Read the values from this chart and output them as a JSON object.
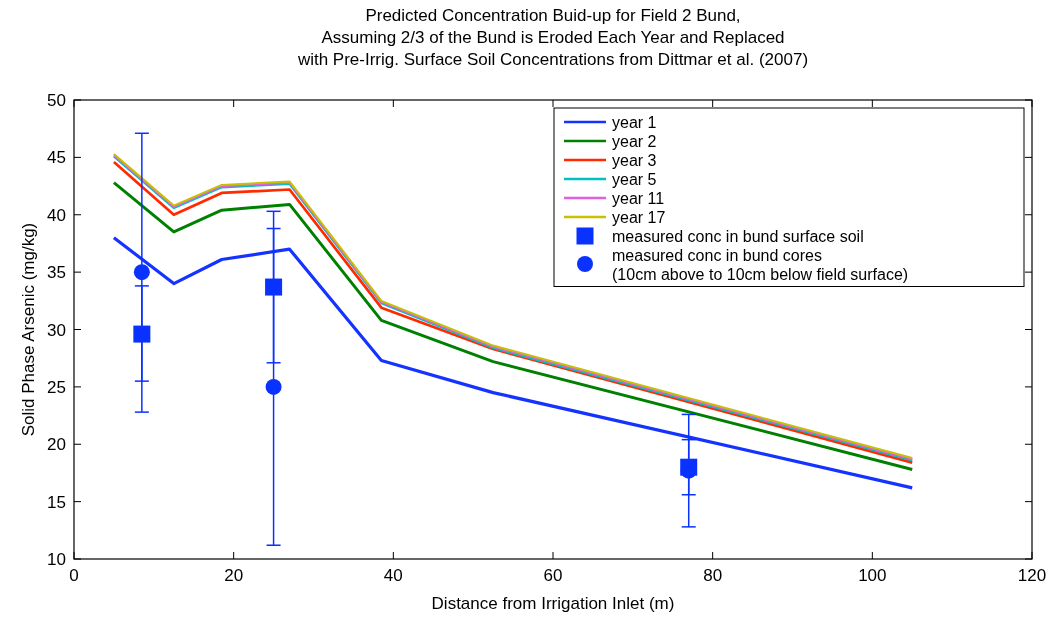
{
  "chart_data": {
    "type": "line",
    "title": "Predicted Concentration Buid-up for Field 2 Bund,\nAssuming 2/3 of the Bund is Eroded Each Year and Replaced\nwith Pre-Irrig. Surface Soil Concentrations from Dittmar et al. (2007)",
    "xlabel": "Distance from Irrigation Inlet (m)",
    "ylabel": "Solid Phase Arsenic (mg/kg)",
    "x": [
      5,
      12.5,
      18.5,
      27,
      38.5,
      52.5,
      105
    ],
    "series": [
      {
        "name": "year 1",
        "color": "#1433ff",
        "values": [
          38,
          34,
          36.1,
          37,
          27.3,
          24.5,
          16.2
        ]
      },
      {
        "name": "year 2",
        "color": "#008000",
        "values": [
          42.8,
          38.5,
          40.4,
          40.9,
          30.8,
          27.2,
          17.8
        ]
      },
      {
        "name": "year 3",
        "color": "#ff2a00",
        "values": [
          44.6,
          40,
          41.9,
          42.2,
          31.9,
          28.3,
          18.4
        ]
      },
      {
        "name": "year 5",
        "color": "#00c0c0",
        "values": [
          45.1,
          40.6,
          42.4,
          42.7,
          32.3,
          28.4,
          18.6
        ]
      },
      {
        "name": "year 11",
        "color": "#e060e0",
        "values": [
          45.2,
          40.7,
          42.5,
          42.8,
          32.4,
          28.5,
          18.7
        ]
      },
      {
        "name": "year 17",
        "color": "#c8c000",
        "values": [
          45.3,
          40.8,
          42.6,
          42.9,
          32.5,
          28.6,
          18.8
        ]
      },
      {
        "name": "measured conc in bund surface soil",
        "type": "scatter",
        "marker": "square",
        "color": "#0a32ff",
        "x": [
          8.5,
          25,
          77
        ],
        "values": [
          29.6,
          33.7,
          18
        ],
        "errors": [
          [
            25.5,
            33.8
          ],
          [
            27.1,
            40.3
          ],
          [
            15.6,
            20.4
          ]
        ]
      },
      {
        "name": "measured conc in bund cores\n(10cm above to 10cm below field surface)",
        "type": "scatter",
        "marker": "circle",
        "color": "#0a32ff",
        "x": [
          8.5,
          25,
          77
        ],
        "values": [
          35,
          25,
          17.7
        ],
        "errors": [
          [
            22.8,
            47.1
          ],
          [
            11.2,
            38.8
          ],
          [
            12.8,
            22.6
          ]
        ]
      }
    ],
    "xlim": [
      0,
      120
    ],
    "xticks": [
      0,
      20,
      40,
      60,
      80,
      100,
      120
    ],
    "ylim": [
      10,
      50
    ],
    "yticks": [
      10,
      15,
      20,
      25,
      30,
      35,
      40,
      45,
      50
    ],
    "legend": "top right"
  }
}
